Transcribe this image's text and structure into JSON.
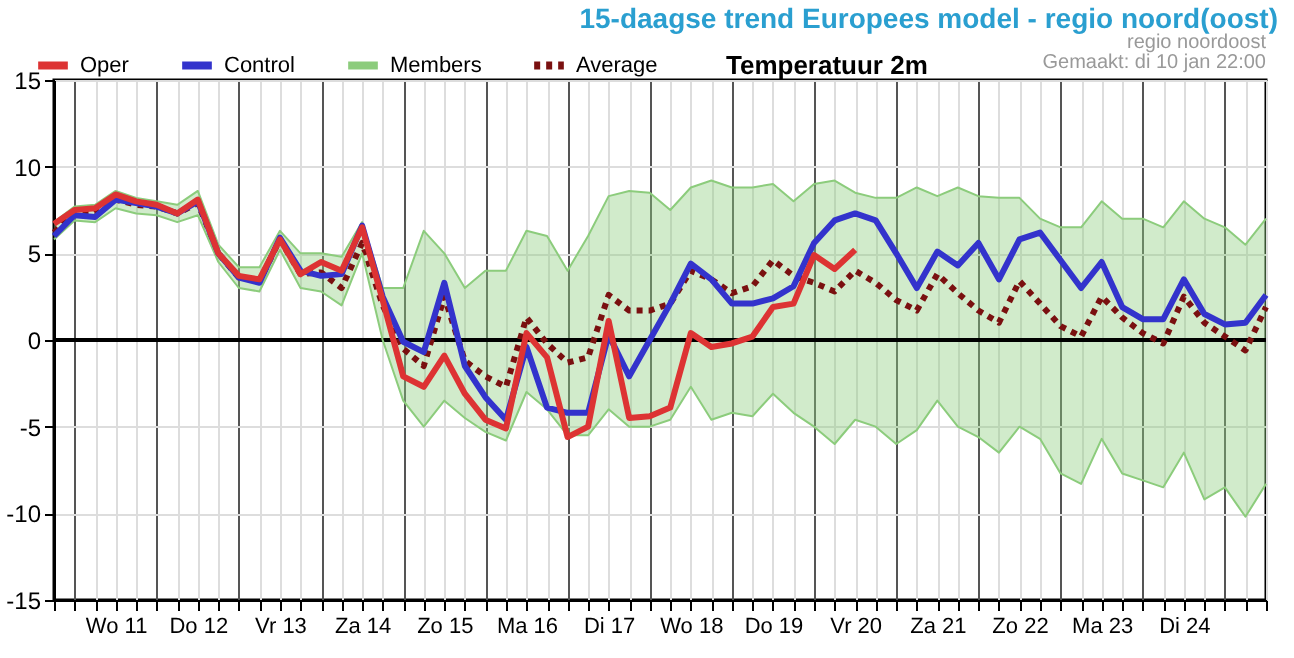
{
  "chart_data": {
    "type": "line",
    "title": "15-daagse trend Europees model - regio noord(oost)",
    "subtitle": "Temperatuur 2m",
    "annotations": [
      "regio noordoost",
      "Gemaakt: di 10 jan 22:00"
    ],
    "x": [
      "--01-10T18:00",
      "--01-11T00:00",
      "--01-11T06:00",
      "--01-11T12:00",
      "--01-11T18:00",
      "--01-12T00:00",
      "--01-12T06:00",
      "--01-12T12:00",
      "--01-12T18:00",
      "--01-13T00:00",
      "--01-13T06:00",
      "--01-13T12:00",
      "--01-13T18:00",
      "--01-14T00:00",
      "--01-14T06:00",
      "--01-14T12:00",
      "--01-14T18:00",
      "--01-15T00:00",
      "--01-15T06:00",
      "--01-15T12:00",
      "--01-15T18:00",
      "--01-16T00:00",
      "--01-16T06:00",
      "--01-16T12:00",
      "--01-16T18:00",
      "--01-17T00:00",
      "--01-17T06:00",
      "--01-17T12:00",
      "--01-17T18:00",
      "--01-18T00:00",
      "--01-18T06:00",
      "--01-18T12:00",
      "--01-18T18:00",
      "--01-19T00:00",
      "--01-19T06:00",
      "--01-19T12:00",
      "--01-19T18:00",
      "--01-20T00:00",
      "--01-20T06:00",
      "--01-20T12:00",
      "--01-20T18:00",
      "--01-21T00:00",
      "--01-21T06:00",
      "--01-21T12:00",
      "--01-21T18:00",
      "--01-22T00:00",
      "--01-22T06:00",
      "--01-22T12:00",
      "--01-22T18:00",
      "--01-23T00:00",
      "--01-23T06:00",
      "--01-23T12:00",
      "--01-23T18:00",
      "--01-24T00:00",
      "--01-24T06:00",
      "--01-24T12:00",
      "--01-24T18:00",
      "--01-25T00:00",
      "--01-25T06:00",
      "--01-25T12:00"
    ],
    "xlim": [
      "--01-10T18:00",
      "--01-25T12:00"
    ],
    "xticks": [
      {
        "value": "--01-10T18:00",
        "label": null
      },
      {
        "value": "--01-11T00:00",
        "label": null
      },
      {
        "value": "--01-11T06:00",
        "label": null
      },
      {
        "value": "--01-11T12:00",
        "label": "Wo 11"
      },
      {
        "value": "--01-11T18:00",
        "label": null
      },
      {
        "value": "--01-12T00:00",
        "label": null
      },
      {
        "value": "--01-12T06:00",
        "label": null
      },
      {
        "value": "--01-12T12:00",
        "label": "Do 12"
      },
      {
        "value": "--01-12T18:00",
        "label": null
      },
      {
        "value": "--01-13T00:00",
        "label": null
      },
      {
        "value": "--01-13T06:00",
        "label": null
      },
      {
        "value": "--01-13T12:00",
        "label": "Vr 13"
      },
      {
        "value": "--01-13T18:00",
        "label": null
      },
      {
        "value": "--01-14T00:00",
        "label": null
      },
      {
        "value": "--01-14T06:00",
        "label": null
      },
      {
        "value": "--01-14T12:00",
        "label": "Za 14"
      },
      {
        "value": "--01-14T18:00",
        "label": null
      },
      {
        "value": "--01-15T00:00",
        "label": null
      },
      {
        "value": "--01-15T06:00",
        "label": null
      },
      {
        "value": "--01-15T12:00",
        "label": "Zo 15"
      },
      {
        "value": "--01-15T18:00",
        "label": null
      },
      {
        "value": "--01-16T00:00",
        "label": null
      },
      {
        "value": "--01-16T06:00",
        "label": null
      },
      {
        "value": "--01-16T12:00",
        "label": "Ma 16"
      },
      {
        "value": "--01-16T18:00",
        "label": null
      },
      {
        "value": "--01-17T00:00",
        "label": null
      },
      {
        "value": "--01-17T06:00",
        "label": null
      },
      {
        "value": "--01-17T12:00",
        "label": "Di 17"
      },
      {
        "value": "--01-17T18:00",
        "label": null
      },
      {
        "value": "--01-18T00:00",
        "label": null
      },
      {
        "value": "--01-18T06:00",
        "label": null
      },
      {
        "value": "--01-18T12:00",
        "label": "Wo 18"
      },
      {
        "value": "--01-18T18:00",
        "label": null
      },
      {
        "value": "--01-19T00:00",
        "label": null
      },
      {
        "value": "--01-19T06:00",
        "label": null
      },
      {
        "value": "--01-19T12:00",
        "label": "Do 19"
      },
      {
        "value": "--01-19T18:00",
        "label": null
      },
      {
        "value": "--01-20T00:00",
        "label": null
      },
      {
        "value": "--01-20T06:00",
        "label": null
      },
      {
        "value": "--01-20T12:00",
        "label": "Vr 20"
      },
      {
        "value": "--01-20T18:00",
        "label": null
      },
      {
        "value": "--01-21T00:00",
        "label": null
      },
      {
        "value": "--01-21T06:00",
        "label": null
      },
      {
        "value": "--01-21T12:00",
        "label": "Za 21"
      },
      {
        "value": "--01-21T18:00",
        "label": null
      },
      {
        "value": "--01-22T00:00",
        "label": null
      },
      {
        "value": "--01-22T06:00",
        "label": null
      },
      {
        "value": "--01-22T12:00",
        "label": "Zo 22"
      },
      {
        "value": "--01-22T18:00",
        "label": null
      },
      {
        "value": "--01-23T00:00",
        "label": null
      },
      {
        "value": "--01-23T06:00",
        "label": null
      },
      {
        "value": "--01-23T12:00",
        "label": "Ma 23"
      },
      {
        "value": "--01-23T18:00",
        "label": null
      },
      {
        "value": "--01-24T00:00",
        "label": null
      },
      {
        "value": "--01-24T06:00",
        "label": null
      },
      {
        "value": "--01-24T12:00",
        "label": "Di 24"
      },
      {
        "value": "--01-24T18:00",
        "label": null
      },
      {
        "value": "--01-25T00:00",
        "label": null
      },
      {
        "value": "--01-25T06:00",
        "label": null
      },
      {
        "value": "--01-25T12:00",
        "label": null
      }
    ],
    "ylim": [
      -15,
      15
    ],
    "yticks": [
      -15,
      -10,
      -5,
      0,
      5,
      10,
      15
    ],
    "grid": true,
    "legend": "top left",
    "line_style": "solid",
    "ref_lines": [
      {
        "axis": "y",
        "value": 0,
        "color": "#000000"
      }
    ],
    "series": [
      {
        "name": "Oper",
        "color": "#dd3333",
        "values": [
          6.7,
          7.5,
          7.6,
          8.4,
          8.0,
          7.8,
          7.3,
          8.1,
          5.0,
          3.7,
          3.5,
          5.8,
          3.8,
          4.5,
          4.0,
          6.5,
          2.3,
          -2.1,
          -2.7,
          -0.9,
          -3.1,
          -4.6,
          -5.1,
          0.4,
          -1.0,
          -5.6,
          -5.0,
          1.1,
          -4.5,
          -4.4,
          -3.9,
          0.4,
          -0.4,
          -0.2,
          0.2,
          1.9,
          2.1,
          4.9,
          4.1,
          5.2,
          null,
          null,
          null,
          null,
          null,
          null,
          null,
          null,
          null,
          null,
          null,
          null,
          null,
          null,
          null,
          null,
          null,
          null,
          null,
          null
        ]
      },
      {
        "name": "Control",
        "color": "#3333cc",
        "values": [
          6.0,
          7.2,
          7.1,
          8.1,
          7.9,
          7.7,
          7.3,
          8.0,
          5.0,
          3.6,
          3.3,
          5.9,
          4.0,
          3.7,
          3.8,
          6.6,
          2.5,
          -0.1,
          -0.7,
          3.3,
          -1.5,
          -3.3,
          -4.6,
          -0.4,
          -3.9,
          -4.2,
          -4.2,
          0.3,
          -2.1,
          0.0,
          2.1,
          4.4,
          3.5,
          2.1,
          2.1,
          2.4,
          3.1,
          5.6,
          6.9,
          7.3,
          6.9,
          5.0,
          3.0,
          5.1,
          4.3,
          5.6,
          3.5,
          5.8,
          6.2,
          4.6,
          3.0,
          4.5,
          1.9,
          1.2,
          1.2,
          3.5,
          1.5,
          0.9,
          1.0,
          2.6
        ]
      },
      {
        "name": "Members",
        "color": "#8ccc7c",
        "values": [
          6.8,
          7.7,
          7.8,
          8.6,
          8.2,
          8.0,
          7.8,
          8.6,
          5.5,
          4.2,
          4.2,
          6.3,
          5.0,
          5.0,
          4.8,
          6.8,
          3.0,
          3.0,
          6.3,
          5.0,
          3.0,
          4.0,
          4.0,
          6.3,
          6.0,
          4.0,
          6.0,
          8.3,
          8.6,
          8.5,
          7.5,
          8.8,
          9.2,
          8.8,
          8.8,
          9.0,
          8.0,
          9.0,
          9.2,
          8.5,
          8.2,
          8.2,
          8.8,
          8.3,
          8.8,
          8.3,
          8.2,
          8.2,
          7.0,
          6.5,
          6.5,
          8.0,
          7.0,
          7.0,
          6.5,
          8.0,
          7.0,
          6.5,
          5.5,
          7.0
        ],
        "lower": [
          5.8,
          6.9,
          6.8,
          7.6,
          7.3,
          7.2,
          6.8,
          7.2,
          4.5,
          3.0,
          2.8,
          5.2,
          3.0,
          2.8,
          2.0,
          5.0,
          0.0,
          -3.5,
          -5.0,
          -3.5,
          -4.5,
          -5.3,
          -5.8,
          -3.0,
          -4.0,
          -5.5,
          -5.5,
          -4.0,
          -5.0,
          -5.0,
          -4.6,
          -2.7,
          -4.6,
          -4.2,
          -4.4,
          -3.1,
          -4.2,
          -5.0,
          -6.0,
          -4.6,
          -5.0,
          -6.0,
          -5.2,
          -3.5,
          -5.0,
          -5.6,
          -6.5,
          -5.0,
          -5.7,
          -7.7,
          -8.3,
          -5.7,
          -7.7,
          -8.1,
          -8.5,
          -6.5,
          -9.2,
          -8.5,
          -10.2,
          -8.3
        ],
        "upper": [
          6.8,
          7.7,
          7.8,
          8.6,
          8.2,
          8.0,
          7.8,
          8.6,
          5.5,
          4.2,
          4.2,
          6.3,
          5.0,
          5.0,
          4.8,
          6.8,
          3.0,
          3.0,
          6.3,
          5.0,
          3.0,
          4.0,
          4.0,
          6.3,
          6.0,
          4.0,
          6.0,
          8.3,
          8.6,
          8.5,
          7.5,
          8.8,
          9.2,
          8.8,
          8.8,
          9.0,
          8.0,
          9.0,
          9.2,
          8.5,
          8.2,
          8.2,
          8.8,
          8.3,
          8.8,
          8.3,
          8.2,
          8.2,
          7.0,
          6.5,
          6.5,
          8.0,
          7.0,
          7.0,
          6.5,
          8.0,
          7.0,
          6.5,
          5.5,
          7.0
        ]
      },
      {
        "color": "#8ccc7c",
        "values": [
          5.8,
          6.9,
          6.8,
          7.6,
          7.3,
          7.2,
          6.8,
          7.2,
          4.5,
          3.0,
          2.8,
          5.2,
          3.0,
          2.8,
          2.0,
          5.0,
          0.0,
          -3.5,
          -5.0,
          -3.5,
          -4.5,
          -5.3,
          -5.8,
          -3.0,
          -4.0,
          -5.5,
          -5.5,
          -4.0,
          -5.0,
          -5.0,
          -4.6,
          -2.7,
          -4.6,
          -4.2,
          -4.4,
          -3.1,
          -4.2,
          -5.0,
          -6.0,
          -4.6,
          -5.0,
          -6.0,
          -5.2,
          -3.5,
          -5.0,
          -5.6,
          -6.5,
          -5.0,
          -5.7,
          -7.7,
          -8.3,
          -5.7,
          -7.7,
          -8.1,
          -8.5,
          -6.5,
          -9.2,
          -8.5,
          -10.2,
          -8.3
        ]
      },
      {
        "name": "Average",
        "color": "#7a1010",
        "line_style": "dotted",
        "values": [
          6.2,
          7.3,
          7.3,
          8.1,
          7.8,
          7.7,
          7.3,
          7.9,
          5.0,
          3.6,
          3.4,
          5.8,
          3.8,
          3.9,
          3.0,
          5.6,
          2.0,
          -0.5,
          -1.5,
          2.5,
          -1.2,
          -2.1,
          -2.7,
          1.3,
          -0.2,
          -1.3,
          -1.0,
          2.6,
          1.7,
          1.7,
          2.1,
          4.0,
          3.5,
          2.7,
          3.1,
          4.6,
          3.7,
          3.3,
          2.8,
          4.0,
          3.3,
          2.3,
          1.7,
          3.8,
          2.7,
          1.7,
          1.0,
          3.4,
          2.1,
          0.8,
          0.2,
          2.5,
          1.3,
          0.4,
          -0.2,
          2.5,
          1.0,
          0.2,
          -0.6,
          1.9
        ]
      }
    ]
  }
}
